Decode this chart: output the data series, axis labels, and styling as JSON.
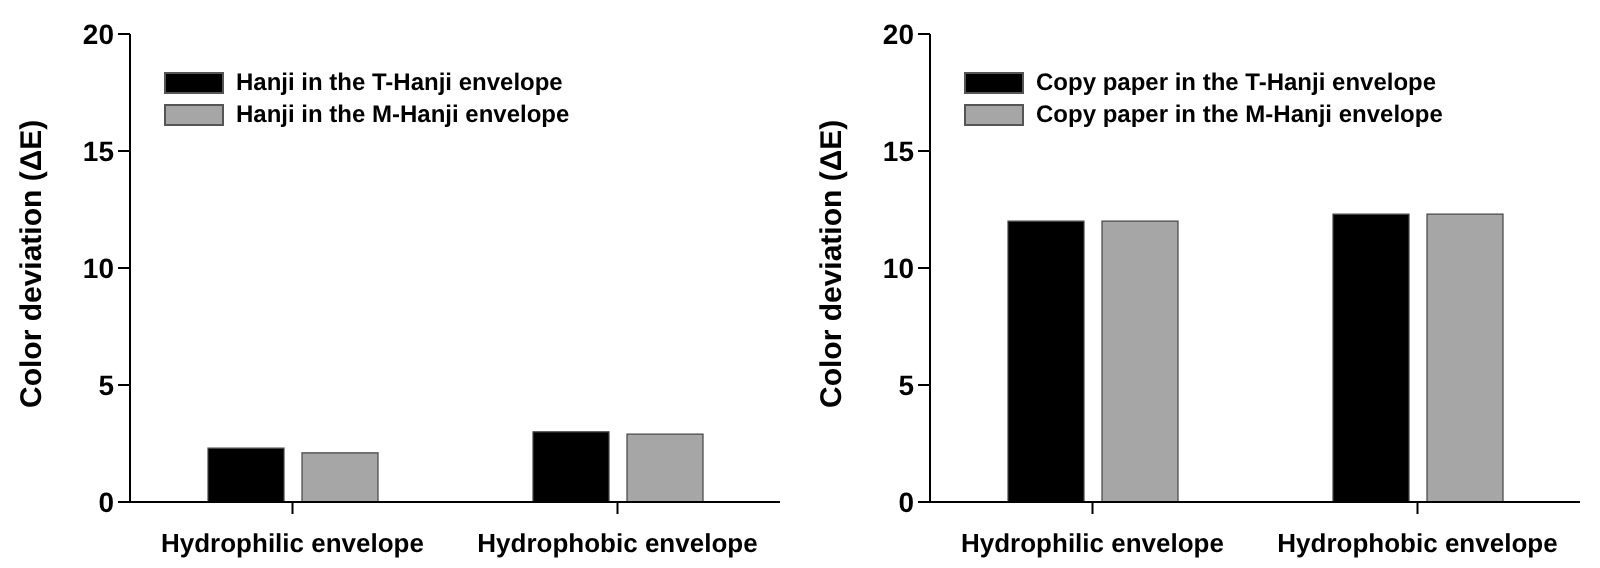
{
  "chart_data": [
    {
      "type": "bar",
      "categories": [
        "Hydrophilic envelope",
        "Hydrophobic envelope"
      ],
      "ylabel": "Color deviation (ΔE)",
      "ylim": [
        0,
        20
      ],
      "yticks": [
        0,
        5,
        10,
        15,
        20
      ],
      "legend": "top left",
      "grid": false,
      "series": [
        {
          "name": "Hanji in the T-Hanji envelope",
          "color": "#000000",
          "values": [
            2.3,
            3.0
          ]
        },
        {
          "name": "Hanji in the M-Hanji envelope",
          "color": "#a6a6a6",
          "values": [
            2.1,
            2.9
          ]
        }
      ]
    },
    {
      "type": "bar",
      "categories": [
        "Hydrophilic envelope",
        "Hydrophobic envelope"
      ],
      "ylabel": "Color deviation (ΔE)",
      "ylim": [
        0,
        20
      ],
      "yticks": [
        0,
        5,
        10,
        15,
        20
      ],
      "legend": "top left",
      "grid": false,
      "series": [
        {
          "name": "Copy paper in the T-Hanji envelope",
          "color": "#000000",
          "values": [
            12.0,
            12.3
          ]
        },
        {
          "name": "Copy paper in the M-Hanji envelope",
          "color": "#a6a6a6",
          "values": [
            12.0,
            12.3
          ]
        }
      ]
    }
  ]
}
